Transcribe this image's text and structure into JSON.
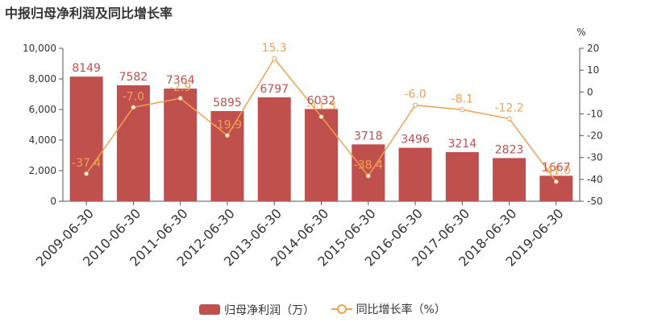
{
  "chart_data": {
    "type": "bar+line",
    "title": "中报归母净利润及同比增长率",
    "categories": [
      "2009-06-30",
      "2010-06-30",
      "2011-06-30",
      "2012-06-30",
      "2013-06-30",
      "2014-06-30",
      "2015-06-30",
      "2016-06-30",
      "2017-06-30",
      "2018-06-30",
      "2019-06-30"
    ],
    "series": [
      {
        "name": "归母净利润（万）",
        "kind": "bar",
        "axis": "left",
        "values": [
          8149,
          7582,
          7364,
          5895,
          6797,
          6032,
          3718,
          3496,
          3214,
          2823,
          1667
        ],
        "labels": [
          "8149",
          "7582",
          "7364",
          "5895",
          "6797",
          "6032",
          "3718",
          "3496",
          "3214",
          "2823",
          "1667"
        ],
        "color": "#c0504d"
      },
      {
        "name": "同比增长率（%）",
        "kind": "line",
        "axis": "right",
        "values": [
          -37.4,
          -7.0,
          -2.9,
          -19.9,
          15.3,
          -11.3,
          -38.4,
          -6.0,
          -8.1,
          -12.2,
          -41.0
        ],
        "labels": [
          "-37.4",
          "-7.0",
          "-2.9",
          "-19.9",
          "15.3",
          "-11.3",
          "-38.4",
          "-6.0",
          "-8.1",
          "-12.2",
          "-41.0"
        ],
        "color": "#f0a050"
      }
    ],
    "y_left": {
      "min": 0,
      "max": 10000,
      "ticks": [
        "0",
        "2,000",
        "4,000",
        "6,000",
        "8,000",
        "10,000"
      ]
    },
    "y_right": {
      "min": -50,
      "max": 20,
      "unit": "%",
      "ticks": [
        "-50",
        "-40",
        "-30",
        "-20",
        "-10",
        "0",
        "10",
        "20"
      ]
    },
    "grid": false,
    "legend_position": "bottom"
  }
}
